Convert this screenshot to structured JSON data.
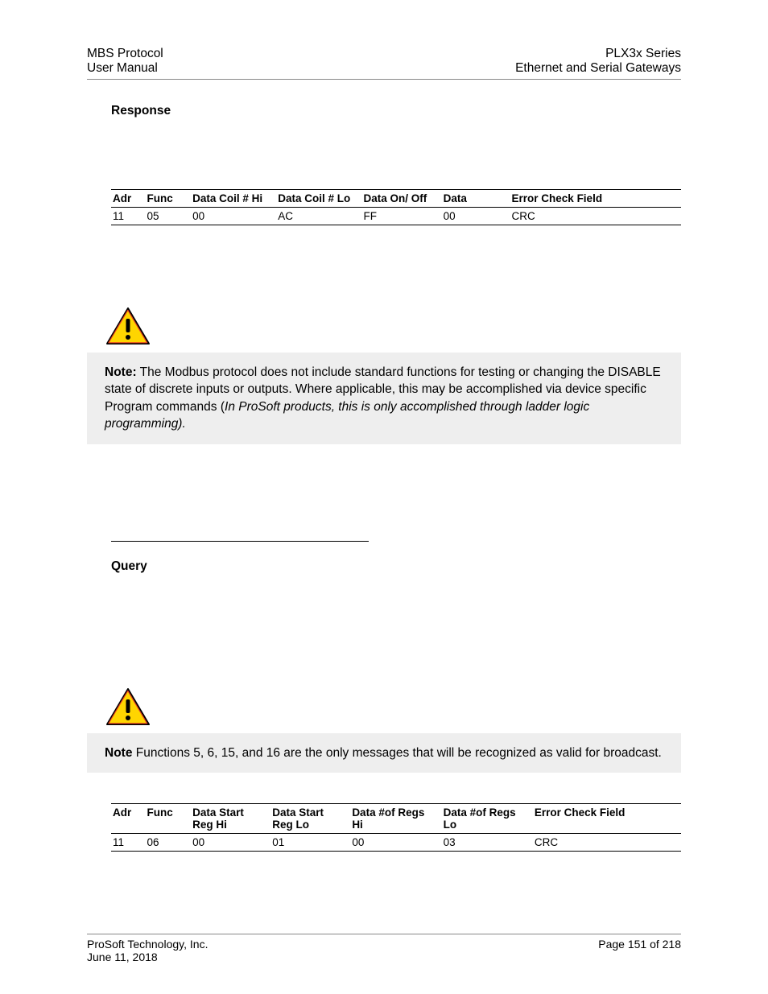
{
  "header": {
    "left_line1": "MBS Protocol",
    "left_line2": "User Manual",
    "right_line1": "PLX3x Series",
    "right_line2": "Ethernet and Serial Gateways"
  },
  "section1": {
    "title": "Response"
  },
  "table1": {
    "columns": [
      "Adr",
      "Func",
      "Data Coil # Hi",
      "Data Coil # Lo",
      "Data On/ Off",
      "Data",
      "Error Check Field"
    ],
    "col_widths": [
      "6%",
      "8%",
      "15%",
      "15%",
      "14%",
      "12%",
      "30%"
    ],
    "rows": [
      [
        "11",
        "05",
        "00",
        "AC",
        "FF",
        "00",
        "CRC"
      ]
    ]
  },
  "icon": {
    "fill": "#ffd500",
    "stroke": "#000000",
    "accent": "#e53923"
  },
  "note1": {
    "bold": "Note:",
    "body": " The Modbus protocol does not include standard functions for testing or changing the DISABLE state of discrete inputs or outputs. Where applicable, this may be accomplished via device specific Program commands (",
    "italic": "In ProSoft products, this is only accomplished through ladder logic programming).",
    "tail": ""
  },
  "section2": {
    "title": "Query"
  },
  "note2": {
    "bold": "Note",
    "body": " Functions 5, 6, 15, and 16 are the only messages that will be recognized as valid for broadcast."
  },
  "table2": {
    "columns": [
      "Adr",
      "Func",
      "Data Start Reg Hi",
      "Data Start Reg Lo",
      "Data #of Regs Hi",
      "Data #of Regs Lo",
      "Error Check Field"
    ],
    "col_widths": [
      "6%",
      "8%",
      "14%",
      "14%",
      "16%",
      "16%",
      "26%"
    ],
    "rows": [
      [
        "11",
        "06",
        "00",
        "01",
        "00",
        "03",
        "CRC"
      ]
    ]
  },
  "footer": {
    "left_line1": "ProSoft Technology, Inc.",
    "left_line2": "June 11, 2018",
    "right_line1": "Page 151 of 218"
  }
}
